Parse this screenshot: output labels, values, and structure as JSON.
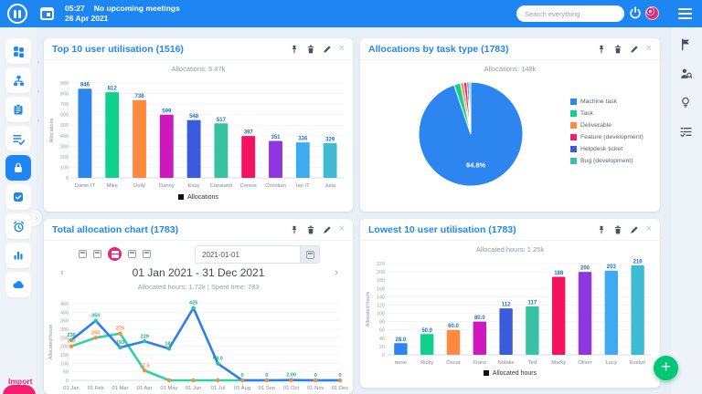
{
  "topbar": {
    "time": "05:27",
    "meetings": "No upcoming meetings",
    "date": "26 Apr 2021",
    "search_placeholder": "Search everything"
  },
  "sidebar_left": {
    "items": [
      "dashboard",
      "workflow",
      "projects",
      "task-list",
      "security",
      "approvals",
      "timer",
      "reports",
      "cloud"
    ],
    "import_label": "Import"
  },
  "sidebar_right": {
    "items": [
      "flag",
      "user-search",
      "lightbulb",
      "checklist"
    ]
  },
  "fab": {
    "label": "+"
  },
  "cards": [
    {
      "title": "Top 10 user utilisation (1516)",
      "subtitle": "Allocations: 5.47k",
      "legend": "Allocations"
    },
    {
      "title": "Allocations by task type (1783)",
      "subtitle": "Allocations: 148k"
    },
    {
      "title": "Total allocation chart (1783)",
      "date_value": "2021-01-01",
      "range_label": "01 Jan 2021 - 31 Dec 2021",
      "stats": "Allocated hours: 1.72k | Spent time: 783",
      "nav_prev": "‹",
      "nav_next": "›"
    },
    {
      "title": "Lowest 10 user utilisation (1783)",
      "subtitle": "Allocated hours: 1.25k",
      "legend": "Allocated hours"
    }
  ],
  "chart_data": [
    {
      "type": "bar",
      "title": "Top 10 user utilisation (1516)",
      "categories": [
        "Dante IT",
        "Mike",
        "Dolly",
        "Danny",
        "Easy",
        "Constanti",
        "Connie",
        "Christian",
        "Ian IT",
        "Julia"
      ],
      "values": [
        846,
        812,
        738,
        599,
        548,
        517,
        397,
        351,
        336,
        329
      ],
      "labels": [
        "846",
        "812",
        "738",
        "599",
        "548",
        "517",
        "397",
        "351",
        "336",
        "329"
      ],
      "colors": [
        "#2d86f0",
        "#0fd08c",
        "#ff8a3d",
        "#ce18be",
        "#3a5bdc",
        "#38c2a2",
        "#f5125f",
        "#8f36df",
        "#3eaaf0",
        "#3fbcd4"
      ],
      "ylabel": "Allocations",
      "ylim": [
        0,
        900
      ],
      "ytick": 100,
      "legend": "Allocations"
    },
    {
      "type": "pie",
      "title": "Allocations by task type (1783)",
      "labels": [
        "Machine task",
        "Task",
        "Deliverable",
        "Feature (development)",
        "Helpdesk ticket",
        "Bug (development)"
      ],
      "values": [
        94.8,
        2.0,
        1.0,
        1.0,
        0.6,
        0.6
      ],
      "colors": [
        "#2d86f0",
        "#0fd08c",
        "#ff8a3d",
        "#f0216e",
        "#3a5bdc",
        "#38c2a2"
      ],
      "annotation": "94.8%",
      "legend_position": "right"
    },
    {
      "type": "line",
      "title": "Total allocation chart (1783)",
      "x": [
        "01 Jan",
        "01 Feb",
        "01 Mar",
        "01 Apr",
        "01 May",
        "01 Jun",
        "01 Jul",
        "01 Aug",
        "01 Sep",
        "01 Oct",
        "01 Nov",
        "01 Dec"
      ],
      "series": [
        {
          "name": "Allocated hours",
          "color": "#2d7ff0",
          "marker": "#27c4a0",
          "label_color": "#1fae85",
          "values": [
            236,
            350,
            193,
            229,
            186,
            425,
            98,
            0,
            0,
            2,
            0,
            0
          ],
          "labels": [
            "236",
            "350",
            "193",
            "229",
            "186",
            "425",
            "98.0",
            "0",
            "0",
            "2.00",
            "0",
            "0"
          ]
        },
        {
          "name": "Spent time",
          "color": "#2ed3a3",
          "marker": "#ff8a3d",
          "label_color": "#ff8a3d",
          "values": [
            200,
            250,
            275,
            57.5,
            0,
            0,
            0,
            0,
            0,
            0,
            0,
            0
          ],
          "labels": [
            "200",
            "250",
            "275",
            "57.5",
            "",
            "",
            "",
            "",
            "",
            "",
            "",
            ""
          ]
        }
      ],
      "ylabel": "Allocated hours",
      "ylim": [
        0,
        450
      ],
      "ytick": 50
    },
    {
      "type": "bar",
      "title": "Lowest 10 user utilisation (1783)",
      "categories": [
        "none",
        "Ricky",
        "Oscar",
        "Franz",
        "Natalie",
        "Ted",
        "Marky",
        "Oliver",
        "Lucy",
        "Evelyn"
      ],
      "values": [
        28,
        50,
        60,
        80,
        112,
        117,
        188,
        200,
        203,
        216
      ],
      "labels": [
        "28.0",
        "50.0",
        "60.0",
        "80.0",
        "112",
        "117",
        "188",
        "200",
        "203",
        "216"
      ],
      "colors": [
        "#2d86f0",
        "#0fd08c",
        "#ff8a3d",
        "#ce18be",
        "#3a5bdc",
        "#38c2a2",
        "#f5125f",
        "#8f36df",
        "#3eaaf0",
        "#3fbcd4"
      ],
      "ylabel": "Allocated hours",
      "ylim": [
        0,
        220
      ],
      "ytick": 20,
      "legend": "Allocated hours"
    }
  ]
}
